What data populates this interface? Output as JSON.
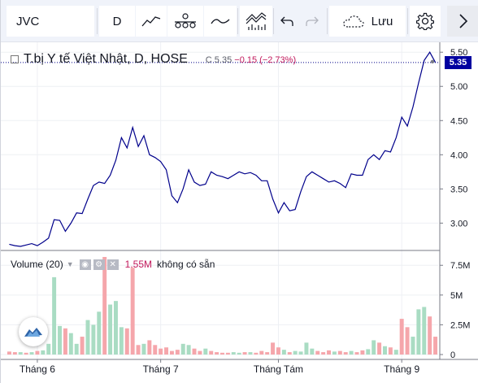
{
  "toolbar": {
    "symbol": "JVC",
    "interval": "D",
    "save_label": "Lưu",
    "icons": {
      "bar_type": "line-chart-icon",
      "compare": "compare-icon",
      "type3": "wave-icon",
      "indicators": "indicators-icon",
      "undo": "undo-icon",
      "redo": "redo-icon",
      "save": "cloud-icon",
      "settings": "gear-icon",
      "collapse": "chevron-right-icon"
    }
  },
  "legend": {
    "title": "T.bị Y tế Việt Nhật, D, HOSE",
    "close_label": "C",
    "close_value": "5.35",
    "change": "−0.15",
    "change_pct": "(−2.73%)"
  },
  "volume_legend": {
    "label": "Volume",
    "period": "(20)",
    "value": "1.55M",
    "na_text": "không có sẵn"
  },
  "price_badge": "5.35",
  "colors": {
    "line": "#00008b",
    "vol_up": "#a9dcc3",
    "vol_down": "#f5a6ab",
    "badge": "#0000a0",
    "negative": "#c2185b"
  },
  "chart_data": [
    {
      "type": "line",
      "name": "price",
      "y_ticks": [
        "5.50",
        "5.00",
        "4.50",
        "4.00",
        "3.50",
        "3.00"
      ],
      "ylim": [
        2.6,
        5.55
      ],
      "x_labels": [
        "Tháng 6",
        "Tháng 7",
        "Tháng Tám",
        "Tháng 9"
      ],
      "values": [
        2.69,
        2.67,
        2.66,
        2.68,
        2.7,
        2.67,
        2.72,
        2.78,
        3.05,
        3.04,
        2.88,
        3.0,
        3.15,
        3.14,
        3.35,
        3.55,
        3.6,
        3.58,
        3.7,
        3.92,
        4.25,
        4.1,
        4.4,
        4.12,
        4.28,
        4.0,
        3.96,
        3.9,
        3.78,
        3.4,
        3.3,
        3.5,
        3.78,
        3.6,
        3.55,
        3.57,
        3.75,
        3.7,
        3.68,
        3.65,
        3.7,
        3.75,
        3.72,
        3.74,
        3.7,
        3.62,
        3.62,
        3.35,
        3.15,
        3.3,
        3.18,
        3.2,
        3.46,
        3.68,
        3.75,
        3.7,
        3.65,
        3.6,
        3.62,
        3.58,
        3.52,
        3.72,
        3.7,
        3.7,
        3.93,
        4.0,
        3.93,
        4.06,
        4.04,
        4.25,
        4.55,
        4.42,
        4.7,
        5.05,
        5.38,
        5.5,
        5.35
      ]
    },
    {
      "type": "bar",
      "name": "volume",
      "y_ticks": [
        "7.5M",
        "5M",
        "2.5M",
        "0"
      ],
      "ylim": [
        0,
        8.2
      ],
      "values": [
        0.25,
        0.2,
        0.2,
        0.15,
        0.2,
        0.3,
        0.35,
        0.9,
        6.5,
        2.4,
        2.2,
        1.8,
        0.9,
        1.5,
        2.9,
        2.5,
        3.6,
        8.2,
        4.2,
        4.5,
        2.3,
        2.2,
        7.3,
        0.8,
        0.9,
        1.2,
        0.8,
        0.5,
        0.6,
        0.3,
        0.4,
        0.9,
        0.8,
        0.5,
        0.3,
        0.5,
        0.3,
        0.2,
        0.15,
        0.15,
        0.2,
        0.15,
        0.2,
        0.2,
        0.15,
        0.3,
        0.2,
        1.0,
        0.6,
        0.4,
        0.2,
        0.3,
        0.25,
        1.0,
        0.5,
        0.3,
        0.2,
        0.35,
        0.25,
        0.3,
        0.2,
        0.3,
        0.2,
        0.35,
        0.45,
        1.2,
        1.0,
        0.7,
        0.6,
        0.4,
        3.0,
        2.3,
        1.5,
        3.8,
        4.0,
        3.2,
        1.5
      ],
      "up": [
        0,
        0,
        1,
        0,
        1,
        0,
        1,
        1,
        1,
        1,
        0,
        1,
        1,
        0,
        1,
        1,
        1,
        0,
        1,
        1,
        1,
        0,
        0,
        0,
        1,
        0,
        0,
        0,
        0,
        0,
        0,
        1,
        1,
        0,
        0,
        1,
        0,
        0,
        0,
        0,
        1,
        1,
        0,
        1,
        0,
        0,
        0,
        0,
        0,
        1,
        0,
        1,
        1,
        1,
        1,
        0,
        0,
        0,
        1,
        0,
        0,
        1,
        0,
        0,
        1,
        1,
        0,
        1,
        0,
        1,
        0,
        0,
        1,
        1,
        1,
        0,
        0
      ]
    }
  ]
}
